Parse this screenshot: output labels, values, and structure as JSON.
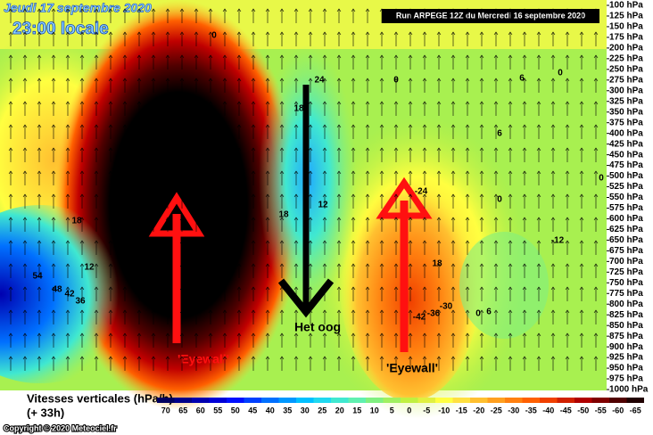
{
  "chart_data": {
    "type": "contour",
    "title": "Jeudi 17 septembre 2020",
    "subtitle": "23:00 locale",
    "run_label": "Run ARPEGE 12Z du Mercredi 16 septembre 2020",
    "variable_label": "Vitesses verticales (hPa/h)",
    "lead_label": "(+ 33h)",
    "copyright": "Copyright © 2020 Meteociel.fr",
    "annotations": [
      "Het oog",
      "'Eyewall'",
      "'Eyewall'"
    ],
    "ylim": [
      1000,
      100
    ],
    "yticks": [
      {
        "value": 100,
        "label": "100 hPa"
      },
      {
        "value": 125,
        "label": "125 hPa"
      },
      {
        "value": 150,
        "label": "150 hPa"
      },
      {
        "value": 175,
        "label": "175 hPa"
      },
      {
        "value": 200,
        "label": "200 hPa"
      },
      {
        "value": 225,
        "label": "225 hPa"
      },
      {
        "value": 250,
        "label": "250 hPa"
      },
      {
        "value": 275,
        "label": "275 hPa"
      },
      {
        "value": 300,
        "label": "300 hPa"
      },
      {
        "value": 325,
        "label": "325 hPa"
      },
      {
        "value": 350,
        "label": "350 hPa"
      },
      {
        "value": 375,
        "label": "375 hPa"
      },
      {
        "value": 400,
        "label": "400 hPa"
      },
      {
        "value": 425,
        "label": "425 hPa"
      },
      {
        "value": 450,
        "label": "450 hPa"
      },
      {
        "value": 475,
        "label": "475 hPa"
      },
      {
        "value": 500,
        "label": "500 hPa"
      },
      {
        "value": 525,
        "label": "525 hPa"
      },
      {
        "value": 550,
        "label": "550 hPa"
      },
      {
        "value": 575,
        "label": "575 hPa"
      },
      {
        "value": 600,
        "label": "600 hPa"
      },
      {
        "value": 625,
        "label": "625 hPa"
      },
      {
        "value": 650,
        "label": "650 hPa"
      },
      {
        "value": 675,
        "label": "675 hPa"
      },
      {
        "value": 700,
        "label": "700 hPa"
      },
      {
        "value": 725,
        "label": "725 hPa"
      },
      {
        "value": 750,
        "label": "750 hPa"
      },
      {
        "value": 775,
        "label": "775 hPa"
      },
      {
        "value": 800,
        "label": "800 hPa"
      },
      {
        "value": 825,
        "label": "825 hPa"
      },
      {
        "value": 850,
        "label": "850 hPa"
      },
      {
        "value": 875,
        "label": "875 hPa"
      },
      {
        "value": 900,
        "label": "900 hPa"
      },
      {
        "value": 925,
        "label": "925 hPa"
      },
      {
        "value": 950,
        "label": "950 hPa"
      },
      {
        "value": 975,
        "label": "975 hPa"
      },
      {
        "value": 1000,
        "label": "1000 hPa"
      }
    ],
    "legend": {
      "values": [
        70,
        65,
        60,
        55,
        50,
        45,
        40,
        35,
        30,
        25,
        20,
        15,
        10,
        5,
        0,
        -5,
        -10,
        -15,
        -20,
        -25,
        -30,
        -35,
        -40,
        -45,
        -50,
        -55,
        -60,
        -65
      ],
      "colors": [
        "#000060",
        "#00008a",
        "#0000b0",
        "#0000d8",
        "#0010ff",
        "#0040ff",
        "#0070ff",
        "#0098ff",
        "#00c0ff",
        "#20d8f0",
        "#40e8d0",
        "#60f0b0",
        "#80f080",
        "#a0f060",
        "#c0f040",
        "#e0f040",
        "#ffff40",
        "#ffe040",
        "#ffc030",
        "#ffa020",
        "#ff8010",
        "#ff6000",
        "#f04000",
        "#d02000",
        "#b00000",
        "#800000",
        "#500000",
        "#200000"
      ]
    },
    "contour_labels": [
      0,
      24,
      18,
      0,
      6,
      6,
      -24,
      0,
      18,
      18,
      12,
      -12,
      0,
      54,
      48,
      42,
      36,
      12,
      18,
      -42,
      -36,
      -30,
      6,
      0,
      0
    ]
  }
}
